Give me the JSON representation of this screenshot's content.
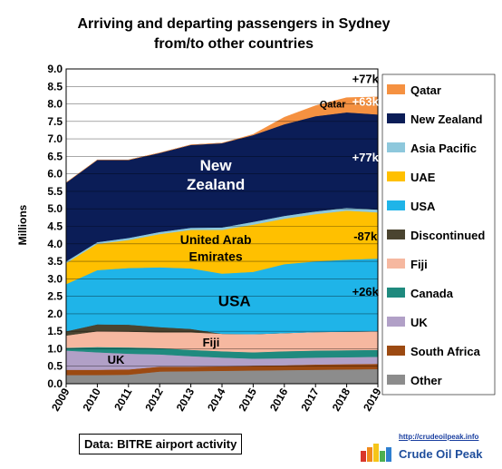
{
  "chart_data": {
    "type": "area",
    "title_line1": "Arriving and departing passengers in Sydney",
    "title_line2": "from/to other countries",
    "ylabel": "Millions",
    "xlabel": "",
    "ylim": [
      0,
      9
    ],
    "yticks": [
      "0.0",
      "0.5",
      "1.0",
      "1.5",
      "2.0",
      "2.5",
      "3.0",
      "3.5",
      "4.0",
      "4.5",
      "5.0",
      "5.5",
      "6.0",
      "6.5",
      "7.0",
      "7.5",
      "8.0",
      "8.5",
      "9.0"
    ],
    "x": [
      "2009",
      "2010",
      "2011",
      "2012",
      "2013",
      "2014",
      "2015",
      "2016",
      "2017",
      "2018",
      "2019"
    ],
    "stack_order": [
      "Other",
      "South Africa",
      "UK",
      "Canada",
      "Fiji",
      "Discontinued",
      "USA",
      "UAE",
      "Asia Pacific",
      "New Zealand",
      "Qatar"
    ],
    "series": [
      {
        "name": "Other",
        "color": "#8c8c8c",
        "values": [
          0.25,
          0.25,
          0.26,
          0.35,
          0.36,
          0.37,
          0.38,
          0.39,
          0.4,
          0.41,
          0.42
        ]
      },
      {
        "name": "South Africa",
        "color": "#9c4a12",
        "values": [
          0.15,
          0.15,
          0.15,
          0.14,
          0.13,
          0.13,
          0.14,
          0.14,
          0.15,
          0.15,
          0.15
        ]
      },
      {
        "name": "UK",
        "color": "#b1a0c7",
        "values": [
          0.55,
          0.5,
          0.45,
          0.35,
          0.3,
          0.25,
          0.2,
          0.2,
          0.2,
          0.2,
          0.2
        ]
      },
      {
        "name": "Canada",
        "color": "#1f8a7e",
        "values": [
          0.08,
          0.15,
          0.18,
          0.18,
          0.18,
          0.18,
          0.18,
          0.2,
          0.2,
          0.2,
          0.2
        ]
      },
      {
        "name": "Fiji",
        "color": "#f6b8a0",
        "values": [
          0.35,
          0.45,
          0.45,
          0.45,
          0.5,
          0.5,
          0.52,
          0.52,
          0.53,
          0.53,
          0.53
        ]
      },
      {
        "name": "Discontinued",
        "color": "#4a4430",
        "values": [
          0.12,
          0.2,
          0.2,
          0.15,
          0.1,
          0.0,
          0.0,
          0.0,
          0.0,
          0.0,
          0.0
        ]
      },
      {
        "name": "USA",
        "color": "#1fb4e8",
        "values": [
          1.35,
          1.55,
          1.62,
          1.71,
          1.73,
          1.72,
          1.78,
          1.97,
          2.02,
          2.06,
          2.08
        ]
      },
      {
        "name": "UAE",
        "color": "#ffc000",
        "values": [
          0.6,
          0.75,
          0.8,
          0.95,
          1.1,
          1.25,
          1.35,
          1.3,
          1.35,
          1.4,
          1.32
        ]
      },
      {
        "name": "Asia Pacific",
        "color": "#8ec8dc",
        "values": [
          0.05,
          0.05,
          0.06,
          0.06,
          0.06,
          0.07,
          0.08,
          0.08,
          0.08,
          0.08,
          0.08
        ]
      },
      {
        "name": "New Zealand",
        "color": "#0b1d57",
        "values": [
          2.25,
          2.35,
          2.23,
          2.26,
          2.37,
          2.41,
          2.48,
          2.62,
          2.72,
          2.73,
          2.72
        ]
      },
      {
        "name": "Qatar",
        "color": "#f59141",
        "values": [
          0,
          0,
          0,
          0,
          0,
          0,
          0.02,
          0.2,
          0.3,
          0.42,
          0.5
        ]
      }
    ],
    "legend": [
      "Qatar",
      "New Zealand",
      "Asia Pacific",
      "UAE",
      "USA",
      "Discontinued",
      "Fiji",
      "Canada",
      "UK",
      "South Africa",
      "Other"
    ],
    "legend_position": "right",
    "annotations": [
      {
        "text": "New",
        "x": 4.8,
        "y": 6.1,
        "color": "white",
        "size": 17
      },
      {
        "text": "Zealand",
        "x": 4.8,
        "y": 5.55,
        "color": "white",
        "size": 17
      },
      {
        "text": "United Arab",
        "x": 4.8,
        "y": 4.0,
        "color": "black",
        "size": 14
      },
      {
        "text": "Emirates",
        "x": 4.8,
        "y": 3.52,
        "color": "black",
        "size": 14
      },
      {
        "text": "USA",
        "x": 5.4,
        "y": 2.22,
        "color": "black",
        "size": 17
      },
      {
        "text": "Fiji",
        "x": 4.65,
        "y": 1.06,
        "color": "black",
        "size": 13
      },
      {
        "text": "UK",
        "x": 1.6,
        "y": 0.57,
        "color": "black",
        "size": 13
      },
      {
        "text": "Qatar",
        "x": 8.55,
        "y": 7.9,
        "color": "black",
        "size": 11
      },
      {
        "text": "+77k",
        "x": 9.6,
        "y": 8.6,
        "color": "black",
        "size": 13
      },
      {
        "text": "+63k",
        "x": 9.6,
        "y": 7.95,
        "color": "white",
        "size": 13
      },
      {
        "text": "+77k",
        "x": 9.6,
        "y": 6.35,
        "color": "white",
        "size": 13
      },
      {
        "text": "-87k",
        "x": 9.6,
        "y": 4.1,
        "color": "black",
        "size": 13
      },
      {
        "text": "+26k",
        "x": 9.6,
        "y": 2.52,
        "color": "black",
        "size": 13
      }
    ],
    "grid": true
  },
  "source_note": "Data: BITRE airport activity",
  "logo": {
    "url": "http://crudeoilpeak.info",
    "name": "Crude Oil Peak"
  }
}
